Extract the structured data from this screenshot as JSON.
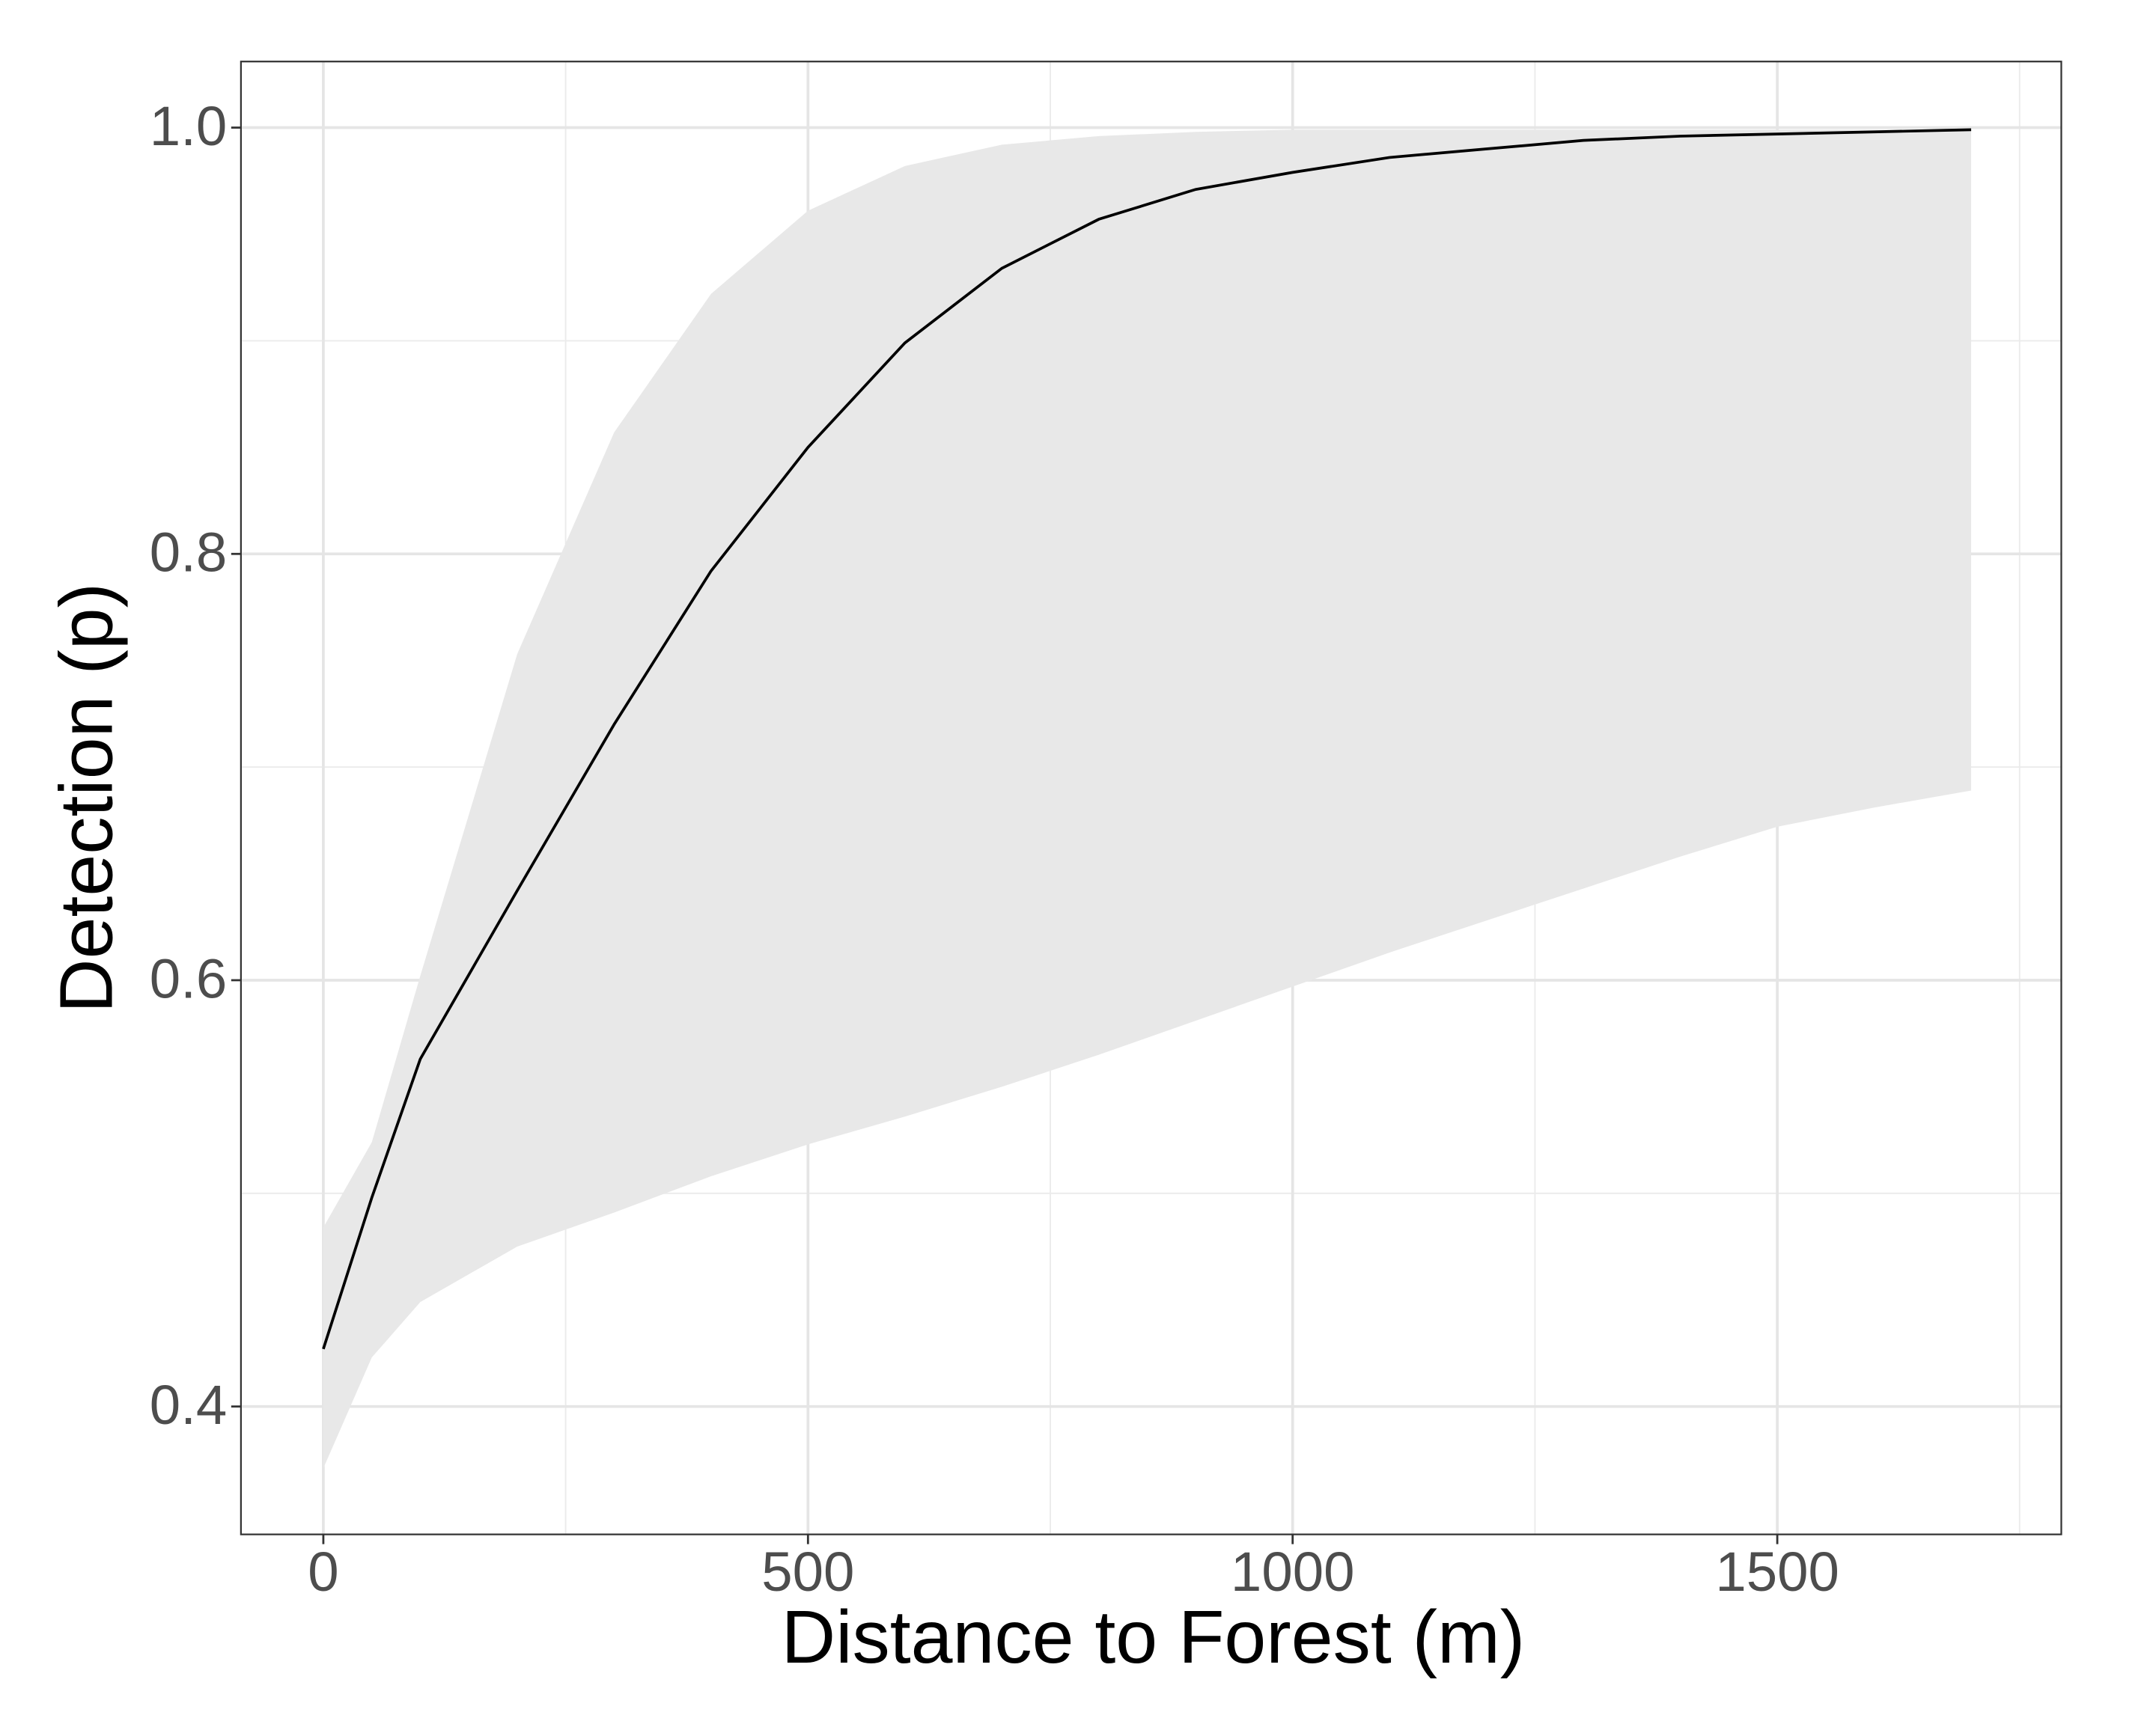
{
  "chart_data": {
    "type": "line_ribbon",
    "x_label": "Distance to Forest (m)",
    "y_label": "Detection (p)",
    "x": [
      0,
      50,
      100,
      200,
      300,
      400,
      500,
      600,
      700,
      800,
      900,
      1000,
      1100,
      1200,
      1300,
      1400,
      1500,
      1600,
      1700
    ],
    "values": [
      0.427,
      0.498,
      0.563,
      0.642,
      0.72,
      0.792,
      0.85,
      0.899,
      0.934,
      0.957,
      0.971,
      0.979,
      0.986,
      0.99,
      0.994,
      0.996,
      0.997,
      0.998,
      0.999
    ],
    "upper": [
      0.484,
      0.524,
      0.602,
      0.753,
      0.857,
      0.922,
      0.961,
      0.982,
      0.992,
      0.996,
      0.998,
      0.999,
      0.999,
      0.999,
      0.999,
      0.999,
      0.999,
      0.999,
      0.999
    ],
    "lower": [
      0.371,
      0.423,
      0.449,
      0.475,
      0.491,
      0.508,
      0.523,
      0.536,
      0.55,
      0.565,
      0.581,
      0.597,
      0.613,
      0.628,
      0.643,
      0.658,
      0.672,
      0.681,
      0.689
    ],
    "color": "#000000",
    "ribbon_color": "#e8e8e8",
    "xlim": [
      -85,
      1793
    ],
    "ylim": [
      0.34,
      1.031
    ],
    "xticks": [
      0,
      500,
      1000,
      1500
    ],
    "yticks": [
      0.4,
      0.6,
      0.8,
      {
        "value": 1.0,
        "label": "1.0"
      }
    ],
    "x_minor_ticks": [
      250,
      750,
      1250,
      1750
    ],
    "y_minor_ticks": [
      0.5,
      0.7,
      0.9
    ],
    "grid": true
  }
}
